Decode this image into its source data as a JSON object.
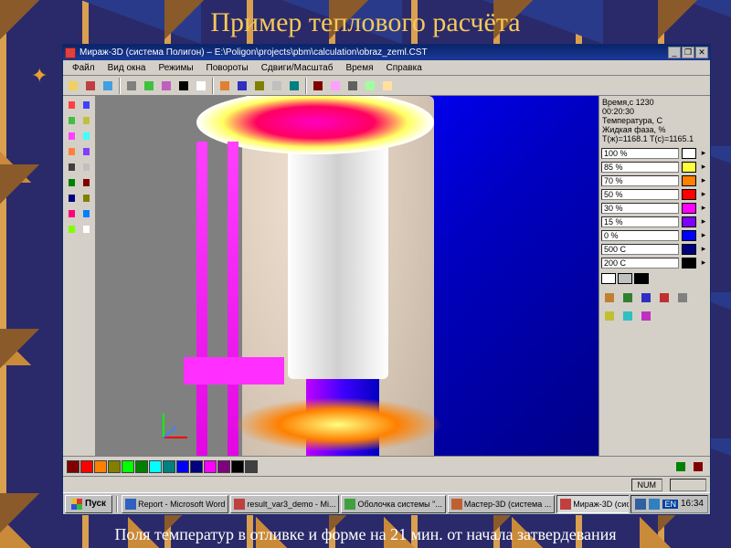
{
  "slide": {
    "title": "Пример теплового расчёта",
    "caption": "Поля температур в отливке и форме на 21 мин. от начала затвердевания"
  },
  "window": {
    "title": "Мираж-3D (система Полигон) – E:\\Poligon\\projects\\pbm\\calculation\\obraz_zeml.CST",
    "min": "_",
    "max": "❐",
    "close": "✕"
  },
  "menu": [
    "Файл",
    "Вид окна",
    "Режимы",
    "Повороты",
    "Сдвиги/Масштаб",
    "Время",
    "Справка"
  ],
  "toolbar_colors": [
    "#f0d060",
    "#c04040",
    "#40a0e0",
    "#808080",
    "#40c040",
    "#c060c0",
    "#000000",
    "#ffffff",
    "#e08030",
    "#3030c0",
    "#808000",
    "#c0c0c0",
    "#008080",
    "#800000",
    "#ffa0ff",
    "#606060",
    "#a0ffa0",
    "#ffe0a0"
  ],
  "info": {
    "l1": "Время,с 1230",
    "l2": "00:20:30",
    "l3": "Температура, С",
    "l4": "Жидкая фаза, %",
    "l5": "T(ж)=1168.1 T(с)=1165.1"
  },
  "legend": [
    {
      "label": "100 %",
      "color": "#ffffff"
    },
    {
      "label": "85 %",
      "color": "#ffff40"
    },
    {
      "label": "70 %",
      "color": "#ff8000"
    },
    {
      "label": "50 %",
      "color": "#ff0000"
    },
    {
      "label": "30 %",
      "color": "#ff00ff"
    },
    {
      "label": "15 %",
      "color": "#8000ff"
    },
    {
      "label": "0 %",
      "color": "#0000ff"
    },
    {
      "label": "500 C",
      "color": "#000080"
    },
    {
      "label": "200 C",
      "color": "#000000"
    }
  ],
  "swatch_row": [
    "#ffffff",
    "#c0c0c0",
    "#000000"
  ],
  "bottom_colors": [
    "#800000",
    "#ff0000",
    "#ff8000",
    "#808000",
    "#00ff00",
    "#008000",
    "#00ffff",
    "#008080",
    "#0000ff",
    "#000080",
    "#ff00ff",
    "#800080",
    "#000000",
    "#404040"
  ],
  "status": {
    "num": "NUM"
  },
  "taskbar": {
    "start": "Пуск",
    "buttons": [
      {
        "label": "Report - Microsoft Word",
        "active": false,
        "color": "#3060c0"
      },
      {
        "label": "result_var3_demo - Mi...",
        "active": false,
        "color": "#c04040"
      },
      {
        "label": "Оболочка системы \"...",
        "active": false,
        "color": "#40a040"
      },
      {
        "label": "Мастер-3D (система ...",
        "active": false,
        "color": "#c06030"
      },
      {
        "label": "Мираж-3D (систем...",
        "active": true,
        "color": "#c04040"
      }
    ],
    "clock": "16:34",
    "lang": "EN"
  }
}
